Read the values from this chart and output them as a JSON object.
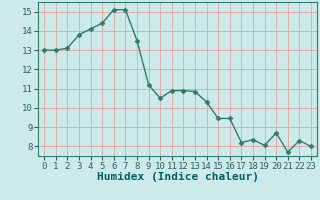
{
  "x": [
    0,
    1,
    2,
    3,
    4,
    5,
    6,
    7,
    8,
    9,
    10,
    11,
    12,
    13,
    14,
    15,
    16,
    17,
    18,
    19,
    20,
    21,
    22,
    23
  ],
  "y": [
    13.0,
    13.0,
    13.1,
    13.8,
    14.1,
    14.4,
    15.1,
    15.1,
    13.5,
    11.2,
    10.5,
    10.9,
    10.9,
    10.85,
    10.3,
    9.45,
    9.45,
    8.2,
    8.35,
    8.05,
    8.7,
    7.7,
    8.3,
    8.0
  ],
  "line_color": "#2e7d6e",
  "marker": "D",
  "marker_size": 2.5,
  "bg_color": "#cceaea",
  "grid_color": "#e8a0a0",
  "xlabel": "Humidex (Indice chaleur)",
  "xlabel_fontsize": 8,
  "xlabel_color": "#006060",
  "ylim": [
    7.5,
    15.5
  ],
  "xlim": [
    -0.5,
    23.5
  ],
  "yticks": [
    8,
    9,
    10,
    11,
    12,
    13,
    14,
    15
  ],
  "xticks": [
    0,
    1,
    2,
    3,
    4,
    5,
    6,
    7,
    8,
    9,
    10,
    11,
    12,
    13,
    14,
    15,
    16,
    17,
    18,
    19,
    20,
    21,
    22,
    23
  ],
  "tick_fontsize": 6.5,
  "tick_color": "#2e6060",
  "line_width": 1.0,
  "spine_color": "#2e7d6e"
}
